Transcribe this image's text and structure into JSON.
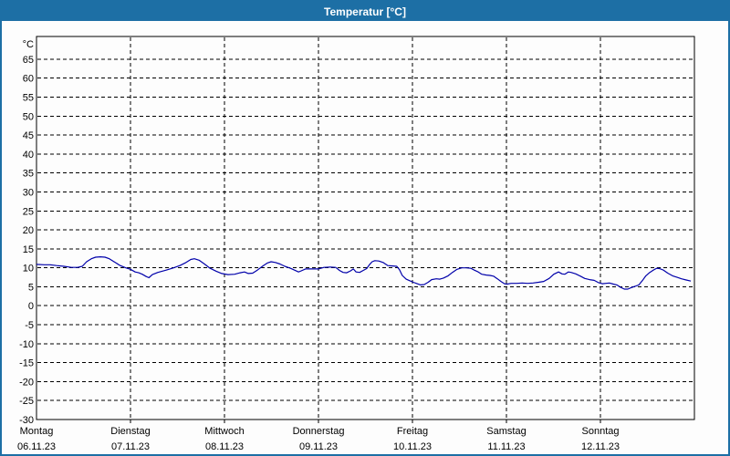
{
  "window": {
    "title": "Temperatur [°C]"
  },
  "colors": {
    "titlebar_bg": "#1d6fa5",
    "plot_bg": "#fdfdfd",
    "grid": "#000000",
    "line": "#0000aa"
  },
  "chart_data": {
    "type": "line",
    "title": "Temperatur [°C]",
    "y_unit_label": "°C",
    "ylabel": "°C",
    "xlabel": "",
    "y_min": -30,
    "y_max": 65,
    "y_step": 5,
    "y_plot_top": 71,
    "grid": "dashed",
    "legend": "none",
    "x_days": [
      {
        "name": "Montag",
        "date": "06.11.23"
      },
      {
        "name": "Dienstag",
        "date": "07.11.23"
      },
      {
        "name": "Mittwoch",
        "date": "08.11.23"
      },
      {
        "name": "Donnerstag",
        "date": "09.11.23"
      },
      {
        "name": "Freitag",
        "date": "10.11.23"
      },
      {
        "name": "Samstag",
        "date": "11.11.23"
      },
      {
        "name": "Sonntag",
        "date": "12.11.23"
      }
    ],
    "hours_total": 168,
    "series": [
      {
        "name": "Temperatur",
        "unit": "°C",
        "points_hours_temp": [
          [
            0,
            10.9
          ],
          [
            1.9,
            10.8
          ],
          [
            3.5,
            10.8
          ],
          [
            5.1,
            10.6
          ],
          [
            7,
            10.4
          ],
          [
            8.9,
            10.1
          ],
          [
            10.5,
            10.1
          ],
          [
            11.7,
            10.4
          ],
          [
            12.8,
            11.6
          ],
          [
            14,
            12.4
          ],
          [
            15.1,
            12.8
          ],
          [
            16.3,
            12.9
          ],
          [
            17.5,
            12.8
          ],
          [
            18.6,
            12.4
          ],
          [
            19.8,
            11.6
          ],
          [
            21.4,
            10.6
          ],
          [
            22.8,
            10
          ],
          [
            24,
            9.6
          ],
          [
            25.2,
            8.9
          ],
          [
            26.1,
            8.7
          ],
          [
            27,
            8.3
          ],
          [
            28,
            7.7
          ],
          [
            28.7,
            7.4
          ],
          [
            29.6,
            8.2
          ],
          [
            31,
            8.8
          ],
          [
            33.1,
            9.4
          ],
          [
            35,
            10
          ],
          [
            36.6,
            10.6
          ],
          [
            38.2,
            11.4
          ],
          [
            39.4,
            12.2
          ],
          [
            40.3,
            12.4
          ],
          [
            41.5,
            12
          ],
          [
            42.9,
            11
          ],
          [
            44.3,
            9.9
          ],
          [
            45.9,
            9.1
          ],
          [
            47.3,
            8.5
          ],
          [
            48.9,
            8.2
          ],
          [
            50.6,
            8.3
          ],
          [
            52,
            8.7
          ],
          [
            53.1,
            8.9
          ],
          [
            54.1,
            8.5
          ],
          [
            55.2,
            8.6
          ],
          [
            56.4,
            9.4
          ],
          [
            57.8,
            10.5
          ],
          [
            59,
            11.3
          ],
          [
            59.9,
            11.6
          ],
          [
            61,
            11.4
          ],
          [
            62.2,
            11
          ],
          [
            63.4,
            10.4
          ],
          [
            64.8,
            9.9
          ],
          [
            65.9,
            9.4
          ],
          [
            66.9,
            8.9
          ],
          [
            67.6,
            9.2
          ],
          [
            68.7,
            9.7
          ],
          [
            70.4,
            9.7
          ],
          [
            72,
            9.7
          ],
          [
            73.4,
            10.1
          ],
          [
            75,
            10.2
          ],
          [
            76.4,
            10.1
          ],
          [
            77.4,
            9.3
          ],
          [
            78.3,
            8.8
          ],
          [
            79.2,
            8.7
          ],
          [
            80.2,
            9.2
          ],
          [
            80.9,
            9.7
          ],
          [
            81.6,
            8.9
          ],
          [
            82.5,
            8.8
          ],
          [
            83.4,
            9.3
          ],
          [
            84.3,
            9.8
          ],
          [
            85,
            10.8
          ],
          [
            85.7,
            11.6
          ],
          [
            86.4,
            11.9
          ],
          [
            87.4,
            11.8
          ],
          [
            88.5,
            11.4
          ],
          [
            89.7,
            10.6
          ],
          [
            90.9,
            10.5
          ],
          [
            92,
            10.4
          ],
          [
            92.7,
            9.5
          ],
          [
            93.4,
            8
          ],
          [
            94.4,
            7
          ],
          [
            95.3,
            6.6
          ],
          [
            96.2,
            6.2
          ],
          [
            97.2,
            5.8
          ],
          [
            98.1,
            5.5
          ],
          [
            99,
            5.6
          ],
          [
            100,
            6.2
          ],
          [
            100.9,
            6.9
          ],
          [
            102.1,
            7.1
          ],
          [
            103,
            7
          ],
          [
            103.9,
            7.3
          ],
          [
            105.1,
            7.9
          ],
          [
            106.2,
            8.8
          ],
          [
            107.4,
            9.6
          ],
          [
            108.6,
            10
          ],
          [
            109.7,
            10
          ],
          [
            110.9,
            9.9
          ],
          [
            111.8,
            9.4
          ],
          [
            112.8,
            8.9
          ],
          [
            113.7,
            8.3
          ],
          [
            114.9,
            8.1
          ],
          [
            115.8,
            8
          ],
          [
            116.7,
            7.8
          ],
          [
            117.7,
            7.1
          ],
          [
            118.6,
            6.4
          ],
          [
            119.5,
            5.8
          ],
          [
            120.2,
            5.7
          ],
          [
            121.2,
            5.9
          ],
          [
            122.6,
            5.9
          ],
          [
            124,
            6
          ],
          [
            125.4,
            5.9
          ],
          [
            126.8,
            6
          ],
          [
            128.2,
            6.2
          ],
          [
            129.5,
            6.4
          ],
          [
            130.9,
            7.2
          ],
          [
            132.1,
            8.3
          ],
          [
            133.3,
            8.9
          ],
          [
            134.2,
            8.4
          ],
          [
            134.9,
            8.3
          ],
          [
            135.8,
            8.9
          ],
          [
            136.5,
            8.8
          ],
          [
            137.7,
            8.4
          ],
          [
            138.9,
            7.8
          ],
          [
            140,
            7.2
          ],
          [
            141.2,
            6.9
          ],
          [
            142.4,
            6.7
          ],
          [
            143.5,
            6.1
          ],
          [
            144.5,
            5.8
          ],
          [
            145.4,
            5.9
          ],
          [
            146.3,
            6
          ],
          [
            147.3,
            5.7
          ],
          [
            148.2,
            5.5
          ],
          [
            149.1,
            4.9
          ],
          [
            150.1,
            4.4
          ],
          [
            151,
            4.4
          ],
          [
            151.9,
            4.8
          ],
          [
            152.8,
            5.1
          ],
          [
            153.8,
            5.5
          ],
          [
            154.7,
            6.6
          ],
          [
            155.6,
            7.9
          ],
          [
            156.6,
            8.8
          ],
          [
            157.5,
            9.4
          ],
          [
            158.4,
            9.9
          ],
          [
            159.1,
            9.8
          ],
          [
            160.1,
            9.4
          ],
          [
            161.2,
            8.6
          ],
          [
            162.4,
            7.9
          ],
          [
            163.6,
            7.5
          ],
          [
            164.7,
            7.1
          ],
          [
            165.9,
            6.8
          ],
          [
            167.1,
            6.5
          ]
        ]
      }
    ]
  }
}
